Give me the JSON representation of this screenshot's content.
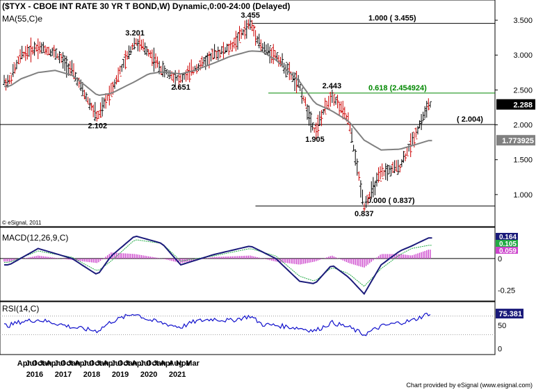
{
  "header": {
    "title": "($TYX - CBOE INT RATE 30 YR T BOND,W) Dynamic,0:00-24:00 (Delayed)",
    "ma_label": "MA(55,C)e",
    "copyright": "© eSignal, 2011",
    "footer": "Chart provided by eSignal (www.esignal.com)"
  },
  "chart_data": [
    {
      "type": "line",
      "name": "price",
      "title": "($TYX - CBOE INT RATE 30 YR T BOND,W) Dynamic,0:00-24:00 (Delayed)",
      "ylim": [
        0.6,
        3.75
      ],
      "yticks": [
        1.0,
        1.5,
        2.0,
        2.5,
        3.0,
        3.5
      ],
      "ytick_labels": [
        "1.000",
        "1.500",
        "2.000",
        "2.500",
        "3.000",
        "3.500"
      ],
      "x_months": [
        3,
        10,
        20,
        30,
        40,
        47,
        55,
        63,
        77,
        85,
        93,
        104,
        112,
        123,
        133,
        145,
        152,
        160,
        174,
        183,
        193,
        203,
        212,
        222,
        233,
        240,
        250
      ],
      "price": [
        2.62,
        3.0,
        3.12,
        3.03,
        2.78,
        2.45,
        2.1,
        2.5,
        3.2,
        3.05,
        2.78,
        2.651,
        2.8,
        3.0,
        3.1,
        3.455,
        3.1,
        3.0,
        2.55,
        1.905,
        2.443,
        2.05,
        0.837,
        1.3,
        1.4,
        1.75,
        2.288
      ],
      "ma55": [
        2.55,
        2.66,
        2.75,
        2.78,
        2.71,
        2.58,
        2.42,
        2.45,
        2.62,
        2.73,
        2.76,
        2.73,
        2.78,
        2.88,
        2.98,
        3.06,
        3.05,
        2.93,
        2.62,
        2.31,
        2.2,
        2.05,
        1.78,
        1.64,
        1.65,
        1.7,
        1.773925
      ],
      "annotations": [
        {
          "label": "3.455",
          "value": 3.455,
          "x_month": 145
        },
        {
          "label": "3.201",
          "value": 3.201,
          "x_month": 77
        },
        {
          "label": "2.651",
          "value": 2.651,
          "x_month": 104
        },
        {
          "label": "2.102",
          "value": 2.102,
          "x_month": 55
        },
        {
          "label": "1.905",
          "value": 1.905,
          "x_month": 183
        },
        {
          "label": "2.443",
          "value": 2.443,
          "x_month": 193
        },
        {
          "label": "0.837",
          "value": 0.837,
          "x_month": 212
        }
      ],
      "fib_levels": [
        {
          "label": "1.000 ( 3.455)",
          "value": 3.455,
          "color": "#000000"
        },
        {
          "label": "0.618 (2.454924)",
          "value": 2.454924,
          "color": "#008800"
        },
        {
          "label": "0.000 ( 0.837)",
          "value": 0.837,
          "color": "#000000"
        }
      ],
      "hline": {
        "label": "( 2.004)",
        "value": 2.004
      },
      "last_price": {
        "label": "2.288",
        "value": 2.288
      },
      "last_ma": {
        "label": "1.773925",
        "value": 1.773925
      }
    },
    {
      "type": "line",
      "name": "macd",
      "title": "MACD(12,26,9,C)",
      "ylim": [
        -0.32,
        0.22
      ],
      "yticks": [
        0,
        -0.25
      ],
      "ytick_labels": [
        "0",
        "-0.25"
      ],
      "x_months": [
        3,
        20,
        40,
        55,
        63,
        77,
        93,
        104,
        123,
        145,
        160,
        174,
        183,
        193,
        203,
        212,
        222,
        233,
        240,
        250
      ],
      "macd": [
        -0.05,
        0.08,
        0.0,
        -0.13,
        0.02,
        0.18,
        0.12,
        -0.05,
        0.03,
        0.1,
        0.0,
        -0.18,
        -0.2,
        -0.05,
        -0.15,
        -0.28,
        -0.05,
        0.06,
        0.1,
        0.164
      ],
      "signal": [
        -0.03,
        0.06,
        0.01,
        -0.1,
        -0.02,
        0.15,
        0.12,
        -0.02,
        0.02,
        0.08,
        0.02,
        -0.14,
        -0.18,
        -0.07,
        -0.12,
        -0.22,
        -0.08,
        0.03,
        0.08,
        0.105
      ],
      "last_labels": [
        "0.164",
        "0.105",
        "0.059"
      ],
      "last_colors": [
        "#1a1a7a",
        "#22aa44",
        "#cc44cc"
      ]
    },
    {
      "type": "line",
      "name": "rsi",
      "title": "RSI(14,C)",
      "ylim": [
        -10,
        95
      ],
      "yticks": [
        0,
        50
      ],
      "ytick_labels": [
        "0",
        "50"
      ],
      "x_months": [
        3,
        10,
        20,
        30,
        40,
        47,
        55,
        63,
        77,
        85,
        93,
        104,
        112,
        123,
        133,
        145,
        152,
        160,
        174,
        183,
        193,
        203,
        212,
        222,
        233,
        240,
        250
      ],
      "rsi": [
        50,
        58,
        62,
        55,
        46,
        42,
        38,
        58,
        76,
        62,
        55,
        46,
        58,
        64,
        60,
        70,
        52,
        50,
        44,
        38,
        56,
        46,
        30,
        48,
        56,
        60,
        75.381
      ],
      "last_label": "75.381"
    }
  ],
  "x_axis": {
    "month_labels": [
      {
        "label": "Apr",
        "m": 3
      },
      {
        "label": "Jul",
        "m": 6
      },
      {
        "label": "Oct",
        "m": 9
      },
      {
        "label": "Jan",
        "m": 12
      },
      {
        "label": "Apr",
        "m": 15
      },
      {
        "label": "Jul",
        "m": 18
      },
      {
        "label": "Oct",
        "m": 21
      },
      {
        "label": "Jan",
        "m": 24
      },
      {
        "label": "Apr",
        "m": 27
      },
      {
        "label": "Jul",
        "m": 30
      },
      {
        "label": "Oct",
        "m": 33
      },
      {
        "label": "Jan",
        "m": 36
      },
      {
        "label": "Apr",
        "m": 39
      },
      {
        "label": "Jul",
        "m": 42
      },
      {
        "label": "Oct",
        "m": 45
      },
      {
        "label": "Jan",
        "m": 48
      },
      {
        "label": "Apr",
        "m": 51
      },
      {
        "label": "Jul",
        "m": 54
      },
      {
        "label": "Oct",
        "m": 57
      },
      {
        "label": "Jan",
        "m": 60
      },
      {
        "label": "Apr",
        "m": 63
      },
      {
        "label": "Aug",
        "m": 67
      },
      {
        "label": "Nov",
        "m": 70
      },
      {
        "label": "Mar",
        "m": 74
      }
    ],
    "year_labels": [
      {
        "label": "2016",
        "m": 7
      },
      {
        "label": "2017",
        "m": 19
      },
      {
        "label": "2018",
        "m": 31
      },
      {
        "label": "2019",
        "m": 43
      },
      {
        "label": "2020",
        "m": 55
      },
      {
        "label": "2021",
        "m": 67
      }
    ]
  },
  "colors": {
    "price_up": "#000000",
    "price_down": "#cc0000",
    "ma": "#808080",
    "fib_green": "#008800",
    "macd_line": "#1a1a7a",
    "signal_line": "#22aa44",
    "hist": "#cc44cc",
    "rsi_line": "#1010cc"
  }
}
